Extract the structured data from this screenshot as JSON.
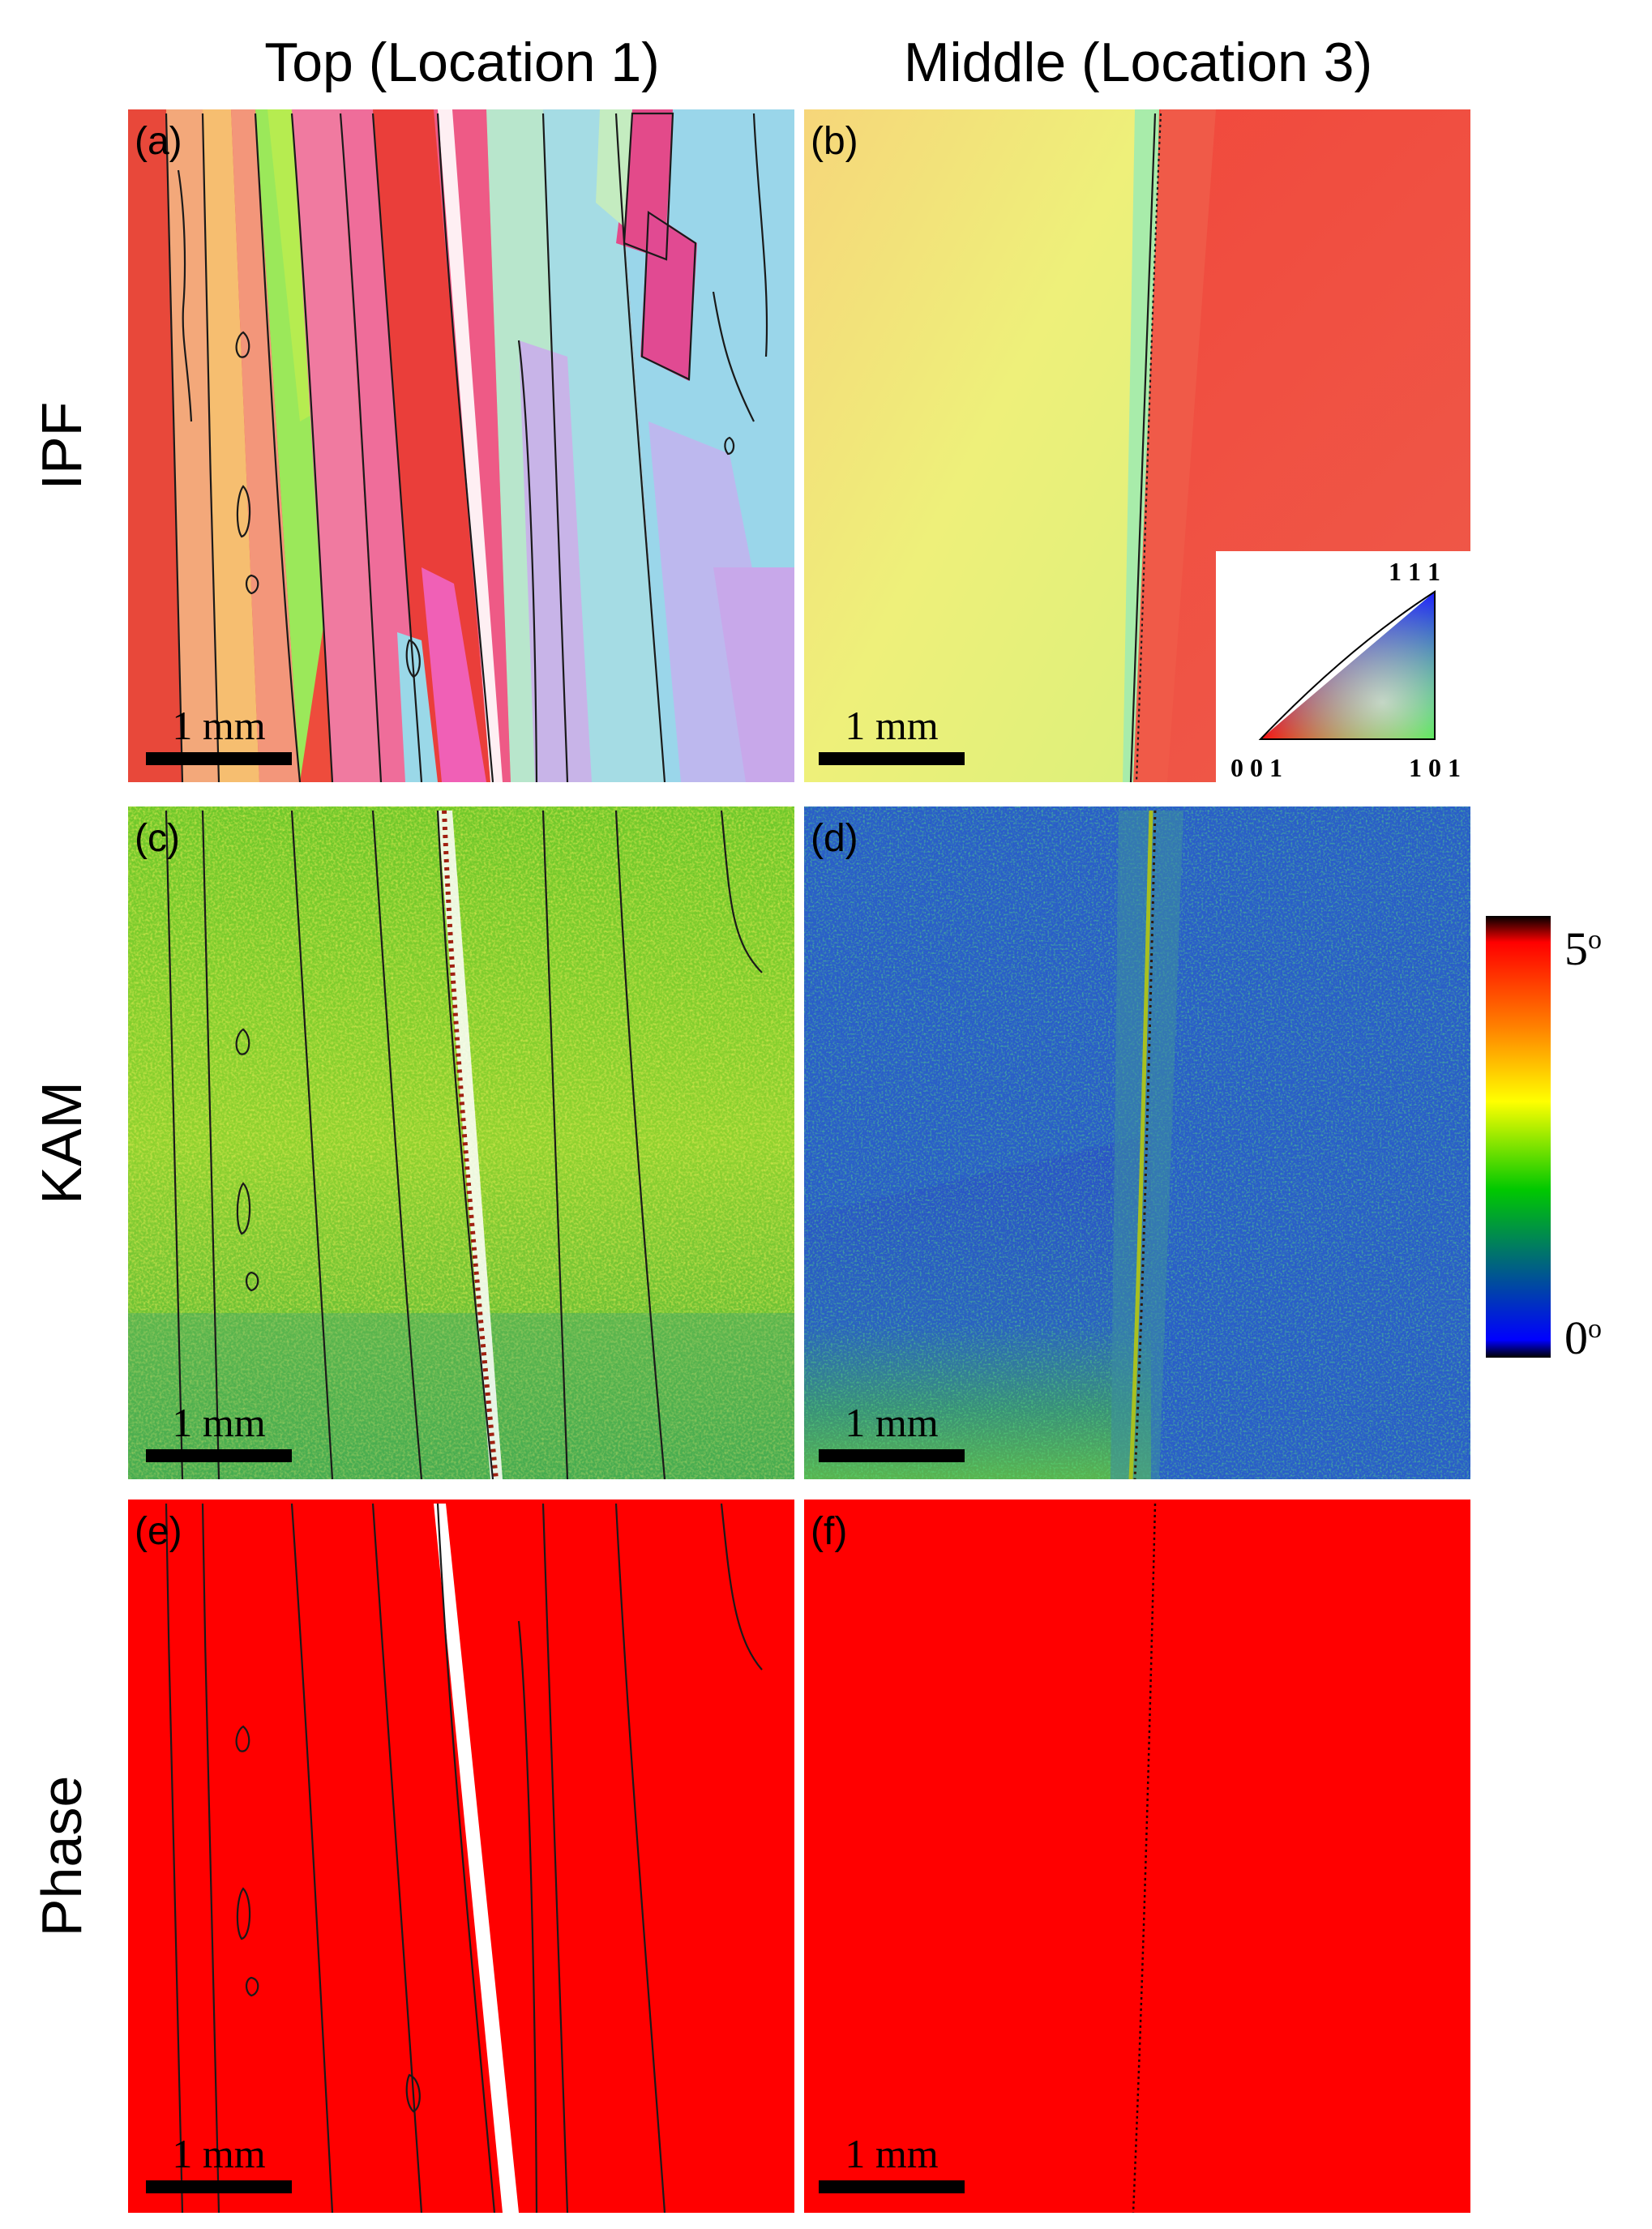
{
  "columns": [
    {
      "title": "Top (Location 1)"
    },
    {
      "title": "Middle (Location 3)"
    }
  ],
  "rows": [
    {
      "title": "IPF"
    },
    {
      "title": "KAM"
    },
    {
      "title": "Phase"
    }
  ],
  "panels": [
    {
      "label": "(a)",
      "scale_bar": "1 mm",
      "kind": "ipf"
    },
    {
      "label": "(b)",
      "scale_bar": "1 mm",
      "kind": "ipf"
    },
    {
      "label": "(c)",
      "scale_bar": "1 mm",
      "kind": "kam"
    },
    {
      "label": "(d)",
      "scale_bar": "1 mm",
      "kind": "kam"
    },
    {
      "label": "(e)",
      "scale_bar": "1 mm",
      "kind": "phase"
    },
    {
      "label": "(f)",
      "scale_bar": "1 mm",
      "kind": "phase"
    }
  ],
  "ipf_legend": {
    "label_111": "1 1 1",
    "label_001": "0 0 1",
    "label_101": "1 0 1"
  },
  "kam_colorbar": {
    "max_label": "5",
    "min_label": "0",
    "unit_sup": "o",
    "colors": [
      "#000000",
      "#0000ff",
      "#00c800",
      "#ffff00",
      "#ff8000",
      "#ff0000",
      "#000000"
    ]
  },
  "phase_color": "#ff0000"
}
